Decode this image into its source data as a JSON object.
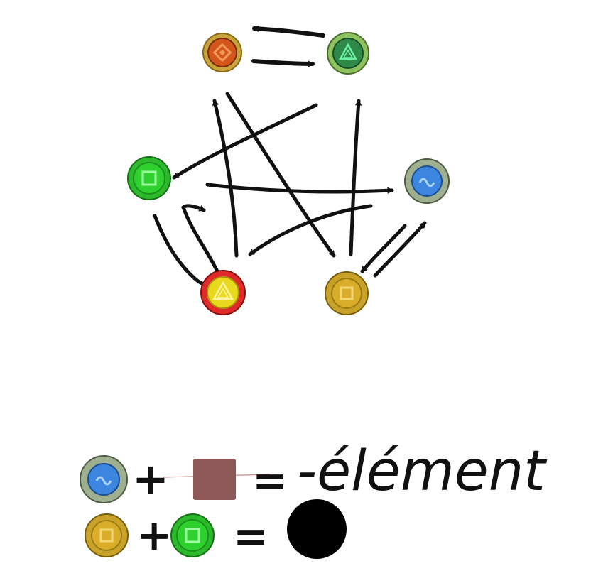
{
  "diagram": {
    "nodes": [
      {
        "id": "orange",
        "icon": "diamond-icon",
        "ring": "#c9a33c",
        "core": "#d4561a",
        "accent": "#f39a5a"
      },
      {
        "id": "lightgreen",
        "icon": "triangle-icon",
        "ring": "#8ec25e",
        "core": "#2f8a4a",
        "accent": "#6cf0a6"
      },
      {
        "id": "green",
        "icon": "square-icon",
        "ring": "#2db82d",
        "core": "#2fd12f",
        "accent": "#9bff9b"
      },
      {
        "id": "blue",
        "icon": "wave-icon",
        "ring": "#9eb08f",
        "core": "#3d86e0",
        "accent": "#a8d4ff"
      },
      {
        "id": "red",
        "icon": "triangle-icon",
        "ring": "#e02a2a",
        "core": "#e8d81e",
        "accent": "#fff4a0"
      },
      {
        "id": "gold",
        "icon": "square-icon",
        "ring": "#c9a22a",
        "core": "#d9ad2a",
        "accent": "#f3d774"
      }
    ],
    "edges": [
      {
        "from": "lightgreen",
        "to": "orange"
      },
      {
        "from": "orange",
        "to": "lightgreen"
      },
      {
        "from": "lightgreen",
        "to": "green"
      },
      {
        "from": "green",
        "to": "blue"
      },
      {
        "from": "blue",
        "to": "red"
      },
      {
        "from": "red",
        "to": "orange"
      },
      {
        "from": "orange",
        "to": "gold"
      },
      {
        "from": "gold",
        "to": "lightgreen"
      },
      {
        "from": "gold",
        "to": "blue"
      },
      {
        "from": "blue",
        "to": "gold"
      },
      {
        "from": "green",
        "to": "red"
      },
      {
        "from": "red",
        "to": "green"
      }
    ]
  },
  "equations": [
    {
      "left": "blue",
      "plus": "+",
      "right_color": "#8f5858",
      "equals": "=",
      "result_text": "-élément"
    },
    {
      "left": "gold",
      "plus": "+",
      "right": "green",
      "equals": "=",
      "result_color": "#000000"
    }
  ]
}
